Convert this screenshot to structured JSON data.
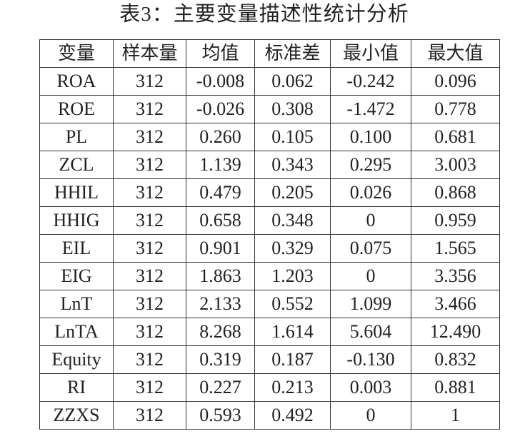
{
  "title": "表3：主要变量描述性统计分析",
  "table": {
    "header": [
      "变量",
      "样本量",
      "均值",
      "标准差",
      "最小值",
      "最大值"
    ],
    "rows": [
      [
        "ROA",
        "312",
        "-0.008",
        "0.062",
        "-0.242",
        "0.096"
      ],
      [
        "ROE",
        "312",
        "-0.026",
        "0.308",
        "-1.472",
        "0.778"
      ],
      [
        "PL",
        "312",
        "0.260",
        "0.105",
        "0.100",
        "0.681"
      ],
      [
        "ZCL",
        "312",
        "1.139",
        "0.343",
        "0.295",
        "3.003"
      ],
      [
        "HHIL",
        "312",
        "0.479",
        "0.205",
        "0.026",
        "0.868"
      ],
      [
        "HHIG",
        "312",
        "0.658",
        "0.348",
        "0",
        "0.959"
      ],
      [
        "EIL",
        "312",
        "0.901",
        "0.329",
        "0.075",
        "1.565"
      ],
      [
        "EIG",
        "312",
        "1.863",
        "1.203",
        "0",
        "3.356"
      ],
      [
        "LnT",
        "312",
        "2.133",
        "0.552",
        "1.099",
        "3.466"
      ],
      [
        "LnTA",
        "312",
        "8.268",
        "1.614",
        "5.604",
        "12.490"
      ],
      [
        "Equity",
        "312",
        "0.319",
        "0.187",
        "-0.130",
        "0.832"
      ],
      [
        "RI",
        "312",
        "0.227",
        "0.213",
        "0.003",
        "0.881"
      ],
      [
        "ZZXS",
        "312",
        "0.593",
        "0.492",
        "0",
        "1"
      ]
    ]
  }
}
